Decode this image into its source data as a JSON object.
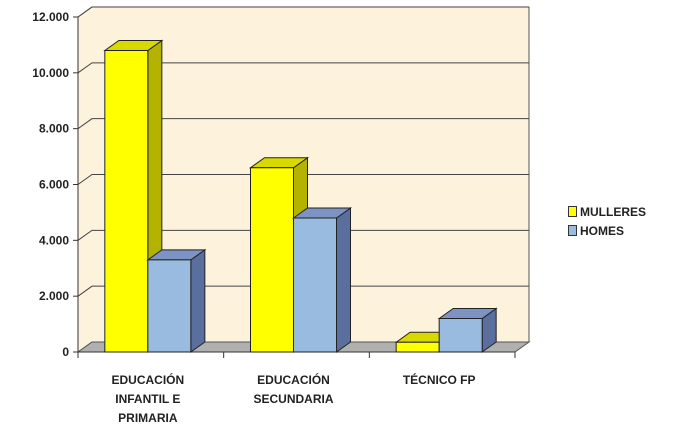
{
  "chart_data": {
    "type": "bar",
    "categories": [
      [
        "EDUCACIÓN",
        "INFANTIL E",
        "PRIMARIA"
      ],
      [
        "EDUCACIÓN",
        "SECUNDARIA"
      ],
      [
        "TÉCNICO FP"
      ]
    ],
    "series": [
      {
        "name": "MULLERES",
        "values": [
          10800,
          6600,
          350
        ],
        "color": "#ffff00",
        "side_color": "#b3b300",
        "top_color": "#d9d900"
      },
      {
        "name": "HOMES",
        "values": [
          3300,
          4800,
          1200
        ],
        "color": "#99bbe0",
        "side_color": "#5a6f9e",
        "top_color": "#7c93c4"
      }
    ],
    "y_ticks": [
      "0",
      "2.000",
      "4.000",
      "6.000",
      "8.000",
      "10.000",
      "12.000"
    ],
    "ylim": [
      0,
      12000
    ],
    "grid": true,
    "legend_position": "right",
    "plot_background": "#fdf2dc",
    "title": "",
    "xlabel": "",
    "ylabel": ""
  }
}
